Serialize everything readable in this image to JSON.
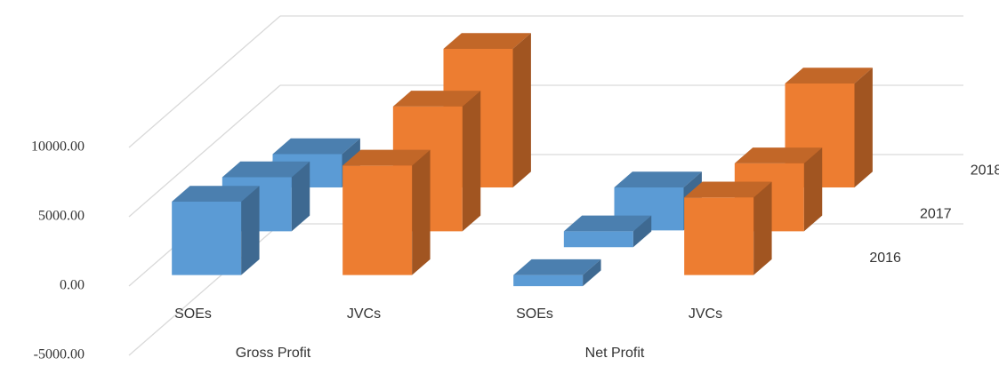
{
  "chart_data": {
    "type": "bar3d",
    "categories": [
      "SOEs",
      "JVCs",
      "SOEs",
      "JVCs"
    ],
    "category_groups": [
      "Gross Profit",
      "Net Profit"
    ],
    "colors": [
      "#5b9bd5",
      "#ed7d31",
      "#5b9bd5",
      "#ed7d31"
    ],
    "series": [
      {
        "name": "2016",
        "values": [
          5300,
          7900,
          -800,
          5600
        ]
      },
      {
        "name": "2017",
        "values": [
          3900,
          9000,
          -1150,
          4900
        ]
      },
      {
        "name": "2018",
        "values": [
          2400,
          10000,
          -3100,
          7500
        ]
      }
    ],
    "ylim": [
      -5000,
      10000
    ],
    "yticks": [
      {
        "value": -5000,
        "label": "-5000.00"
      },
      {
        "value": 0,
        "label": "0.00"
      },
      {
        "value": 5000,
        "label": "5000.00"
      },
      {
        "value": 10000,
        "label": "10000.00"
      }
    ],
    "grid": true
  }
}
